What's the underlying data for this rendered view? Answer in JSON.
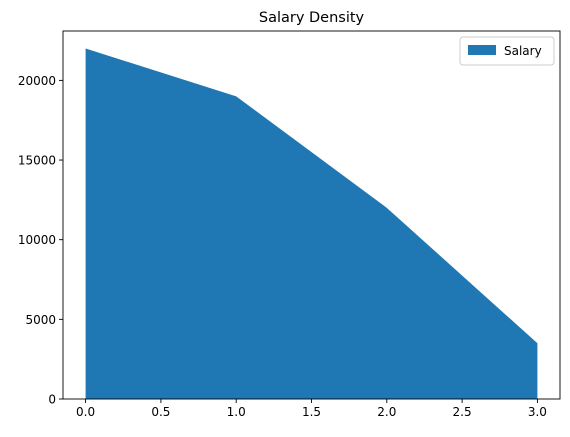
{
  "chart_data": {
    "type": "area",
    "title": "Salary Density",
    "xlabel": "",
    "ylabel": "",
    "x": [
      0,
      1,
      2,
      3
    ],
    "series": [
      {
        "name": "Salary",
        "values": [
          22000,
          19000,
          12000,
          3500
        ],
        "color": "#1f77b4"
      }
    ],
    "xlim": [
      -0.15,
      3.15
    ],
    "ylim": [
      0,
      23100
    ],
    "xticks": [
      0,
      0.5,
      1,
      1.5,
      2,
      2.5,
      3
    ],
    "xtick_labels": [
      "0.0",
      "0.5",
      "1.0",
      "1.5",
      "2.0",
      "2.5",
      "3.0"
    ],
    "yticks": [
      0,
      5000,
      10000,
      15000,
      20000
    ],
    "ytick_labels": [
      "0",
      "5000",
      "10000",
      "15000",
      "20000"
    ],
    "grid": false,
    "legend": {
      "placement": "top-right",
      "entries": [
        "Salary"
      ]
    }
  }
}
